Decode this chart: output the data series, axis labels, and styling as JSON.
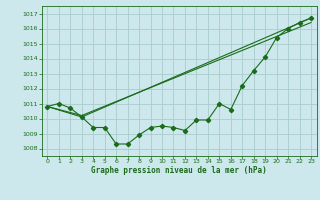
{
  "title": "Graphe pression niveau de la mer (hPa)",
  "bg_color": "#cce8ec",
  "grid_color": "#aacccc",
  "line_color": "#1a6b1a",
  "xlim": [
    -0.5,
    23.5
  ],
  "ylim": [
    1007.5,
    1017.5
  ],
  "yticks": [
    1008,
    1009,
    1010,
    1011,
    1012,
    1013,
    1014,
    1015,
    1016,
    1017
  ],
  "xticks": [
    0,
    1,
    2,
    3,
    4,
    5,
    6,
    7,
    8,
    9,
    10,
    11,
    12,
    13,
    14,
    15,
    16,
    17,
    18,
    19,
    20,
    21,
    22,
    23
  ],
  "series2_x": [
    0,
    1,
    2,
    3,
    4,
    5,
    6,
    7,
    8,
    9,
    10,
    11,
    12,
    13,
    14,
    15,
    16,
    17,
    18,
    19,
    20,
    21,
    22,
    23
  ],
  "series2_y": [
    1010.8,
    1011.0,
    1010.7,
    1010.1,
    1009.4,
    1009.4,
    1008.3,
    1008.3,
    1008.9,
    1009.4,
    1009.5,
    1009.4,
    1009.2,
    1009.9,
    1009.9,
    1011.0,
    1010.6,
    1012.2,
    1013.2,
    1014.1,
    1015.4,
    1016.0,
    1016.4,
    1016.7
  ],
  "series3_x": [
    0,
    3,
    23
  ],
  "series3_y": [
    1010.8,
    1010.1,
    1016.7
  ],
  "series4_x": [
    0,
    3,
    23
  ],
  "series4_y": [
    1010.8,
    1010.2,
    1016.4
  ]
}
